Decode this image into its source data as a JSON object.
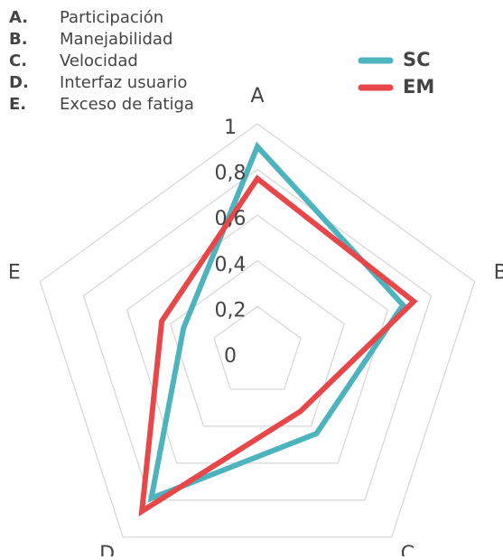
{
  "chart_data": {
    "type": "radar",
    "categories": [
      "A",
      "B",
      "C",
      "D",
      "E"
    ],
    "category_keys": [
      "A.",
      "B.",
      "C.",
      "D.",
      "E."
    ],
    "category_names": [
      "Participación",
      "Manejabilidad",
      "Velocidad",
      "Interfaz usuario",
      "Exceso de fatiga"
    ],
    "series": [
      {
        "name": "SC",
        "color": "#4db3bc",
        "values": [
          0.9,
          0.67,
          0.44,
          0.79,
          0.34
        ]
      },
      {
        "name": "EM",
        "color": "#e8474a",
        "values": [
          0.76,
          0.72,
          0.32,
          0.86,
          0.44
        ]
      }
    ],
    "ylim": [
      0,
      1
    ],
    "yticks": [
      0,
      {
        "value": 0.2,
        "label": "0,2"
      },
      {
        "value": 0.4,
        "label": "0,4"
      },
      {
        "value": 0.6,
        "label": "0,6"
      },
      {
        "value": 0.8,
        "label": "0,8"
      },
      1
    ],
    "grid": true
  }
}
